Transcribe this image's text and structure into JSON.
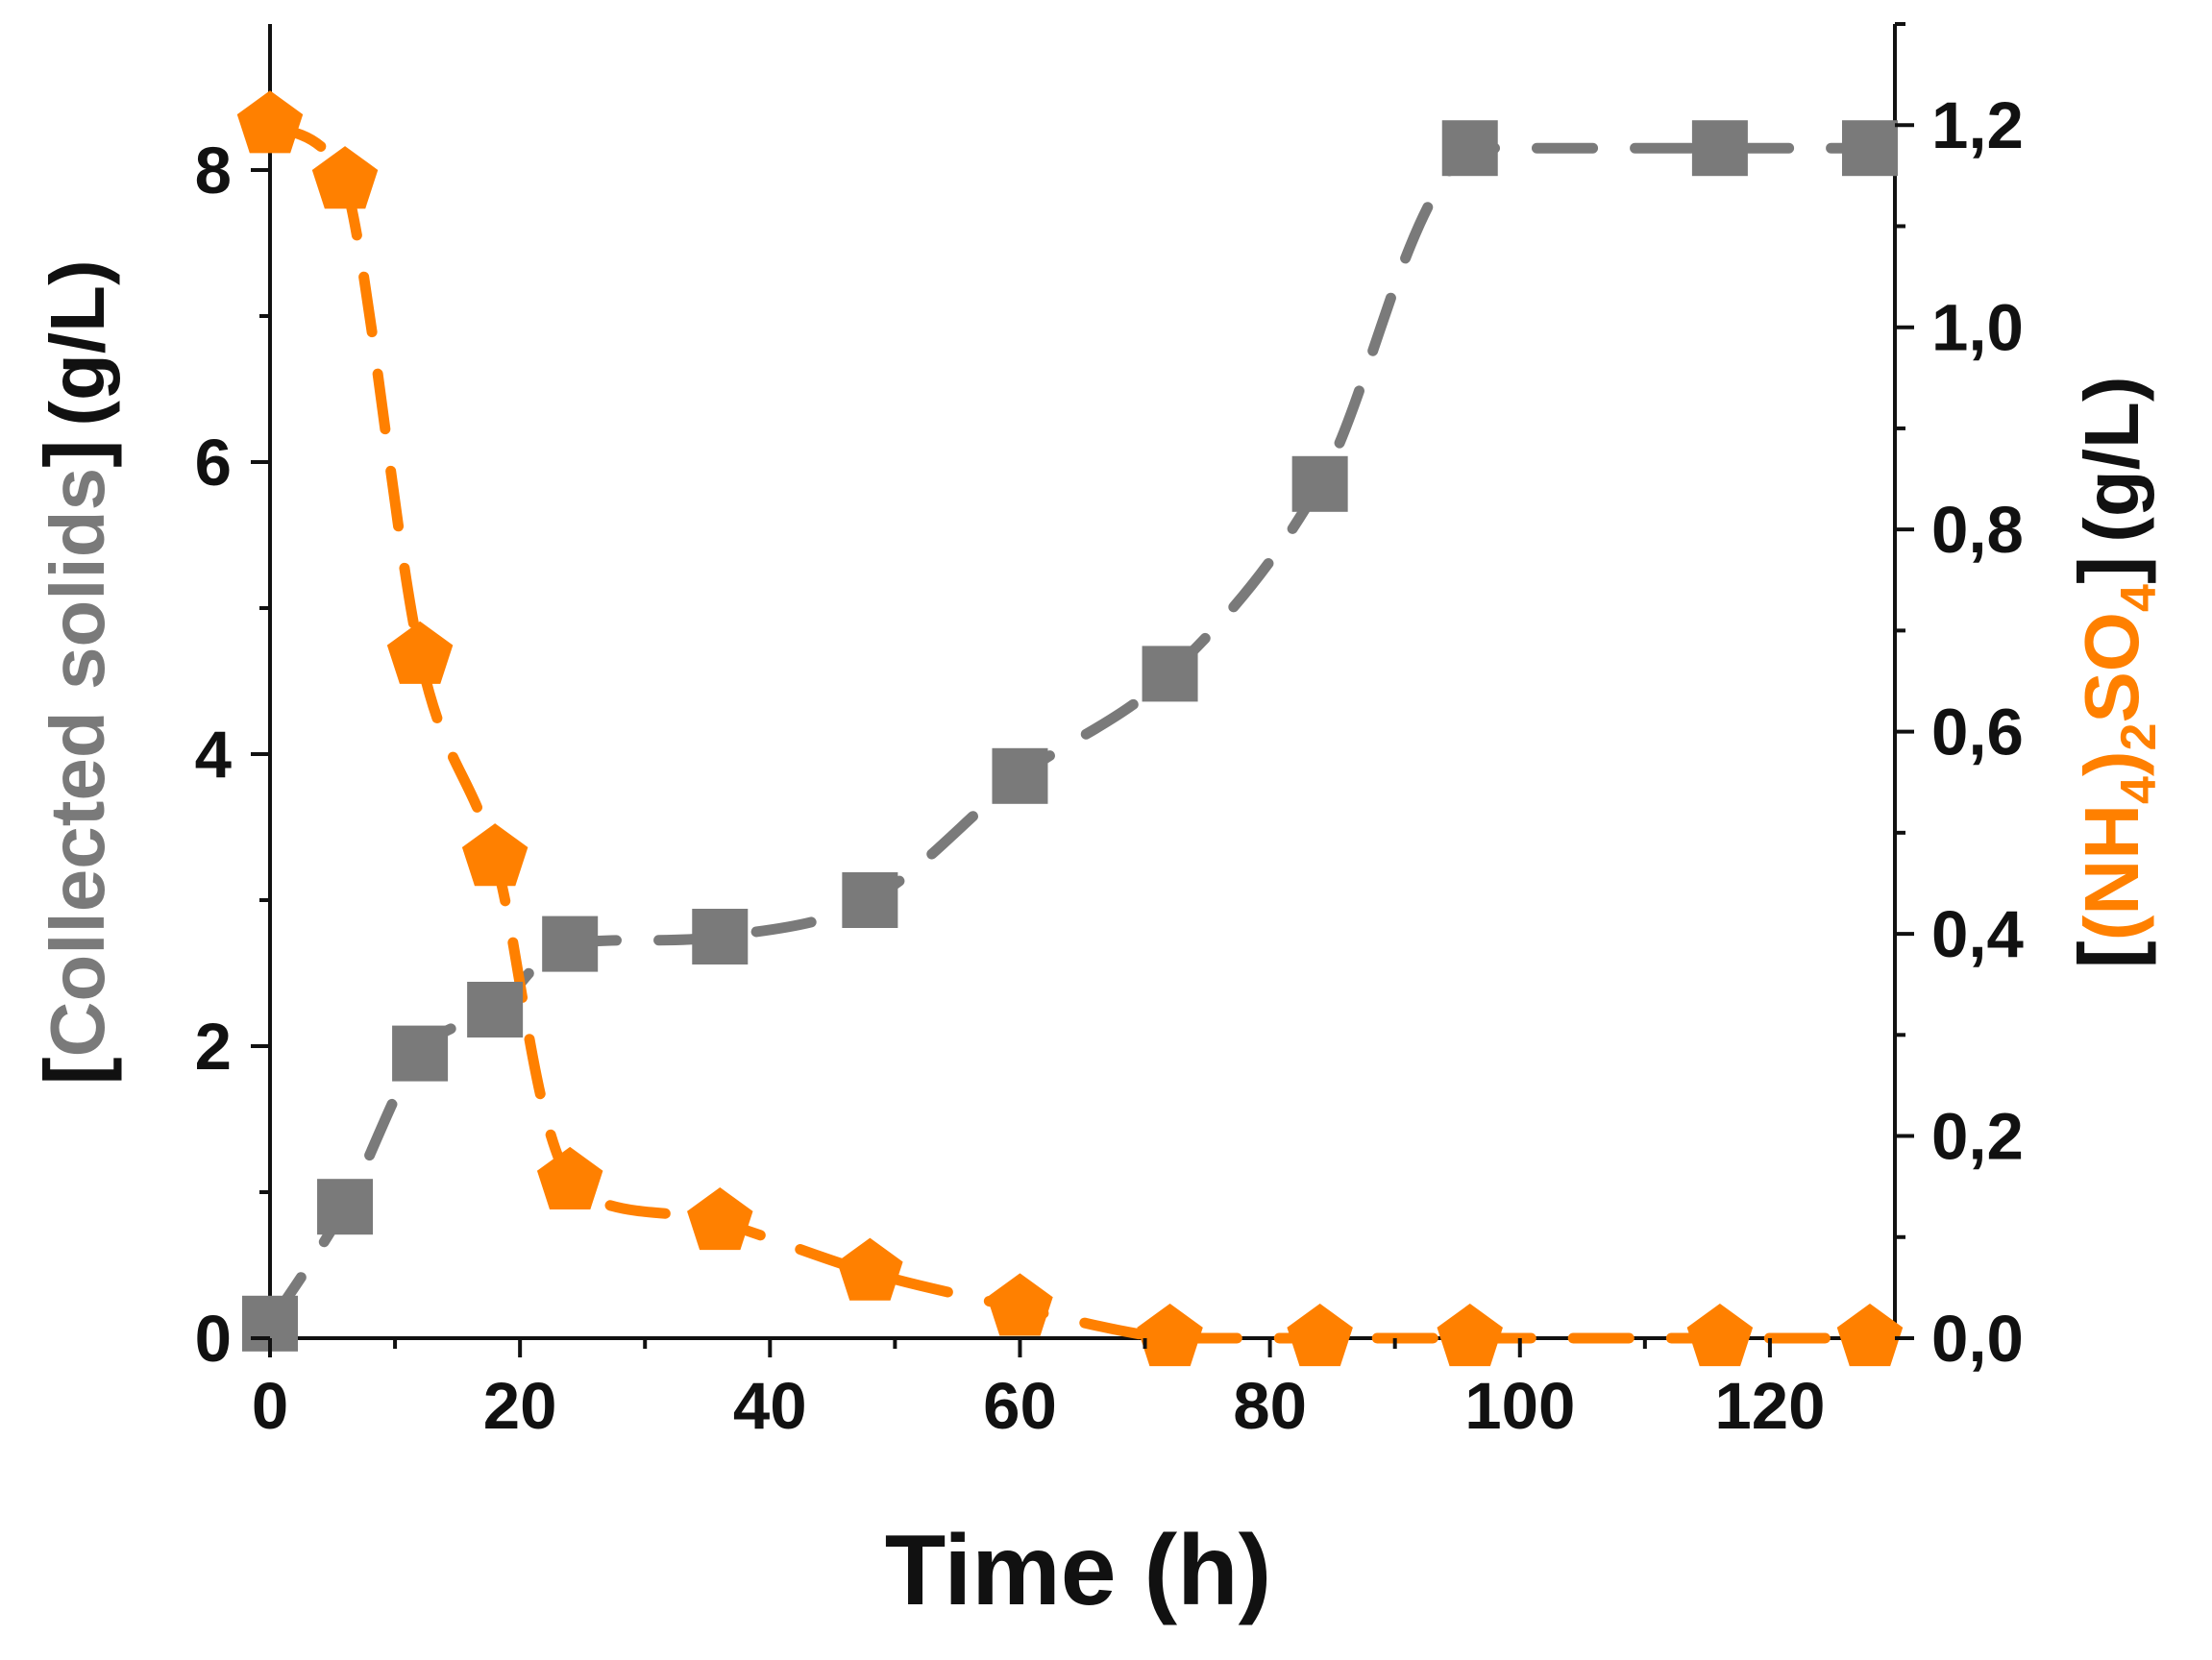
{
  "colors": {
    "solids": "#7a7a7a",
    "ammonium": "#ff8000",
    "text": "#111111",
    "axis": "#111111"
  },
  "chart_data": {
    "type": "line",
    "title": "",
    "x": [
      0,
      6,
      12,
      18,
      24,
      36,
      48,
      60,
      72,
      84,
      96,
      116,
      128
    ],
    "xlim": [
      0,
      130
    ],
    "xticks": [
      "0",
      "20",
      "40",
      "60",
      "80",
      "100",
      "120"
    ],
    "xlabel": "Time (h)",
    "ylim_left": [
      0,
      9
    ],
    "yticks_left": [
      "0",
      "2",
      "4",
      "6",
      "8"
    ],
    "ylabel_left": {
      "open": "[",
      "name": "Collected solids",
      "close": "]",
      "unit": "(g/L)"
    },
    "ylim_right": [
      0,
      1.3
    ],
    "yticks_right": [
      "0,0",
      "0,2",
      "0,4",
      "0,6",
      "0,8",
      "1,0",
      "1,2"
    ],
    "ylabel_right": {
      "open": "[",
      "name_a": "(NH",
      "sub_a": "4",
      "name_b": ")",
      "sub_b": "2",
      "name_c": "SO",
      "sub_c": "4",
      "close": "]",
      "unit": "(g/L)"
    },
    "series": [
      {
        "name": "Collected solids",
        "axis": "left",
        "marker": "square",
        "values": [
          0.1,
          0.9,
          1.95,
          2.25,
          2.7,
          2.75,
          3.0,
          3.85,
          4.55,
          5.85,
          8.15,
          8.15,
          8.15
        ]
      },
      {
        "name": "(NH4)2SO4",
        "axis": "right",
        "marker": "pentagon",
        "values": [
          1.2,
          1.145,
          0.675,
          0.475,
          0.155,
          0.115,
          0.065,
          0.03,
          0.0,
          0.0,
          0.0,
          0.0,
          0.0
        ]
      }
    ]
  }
}
